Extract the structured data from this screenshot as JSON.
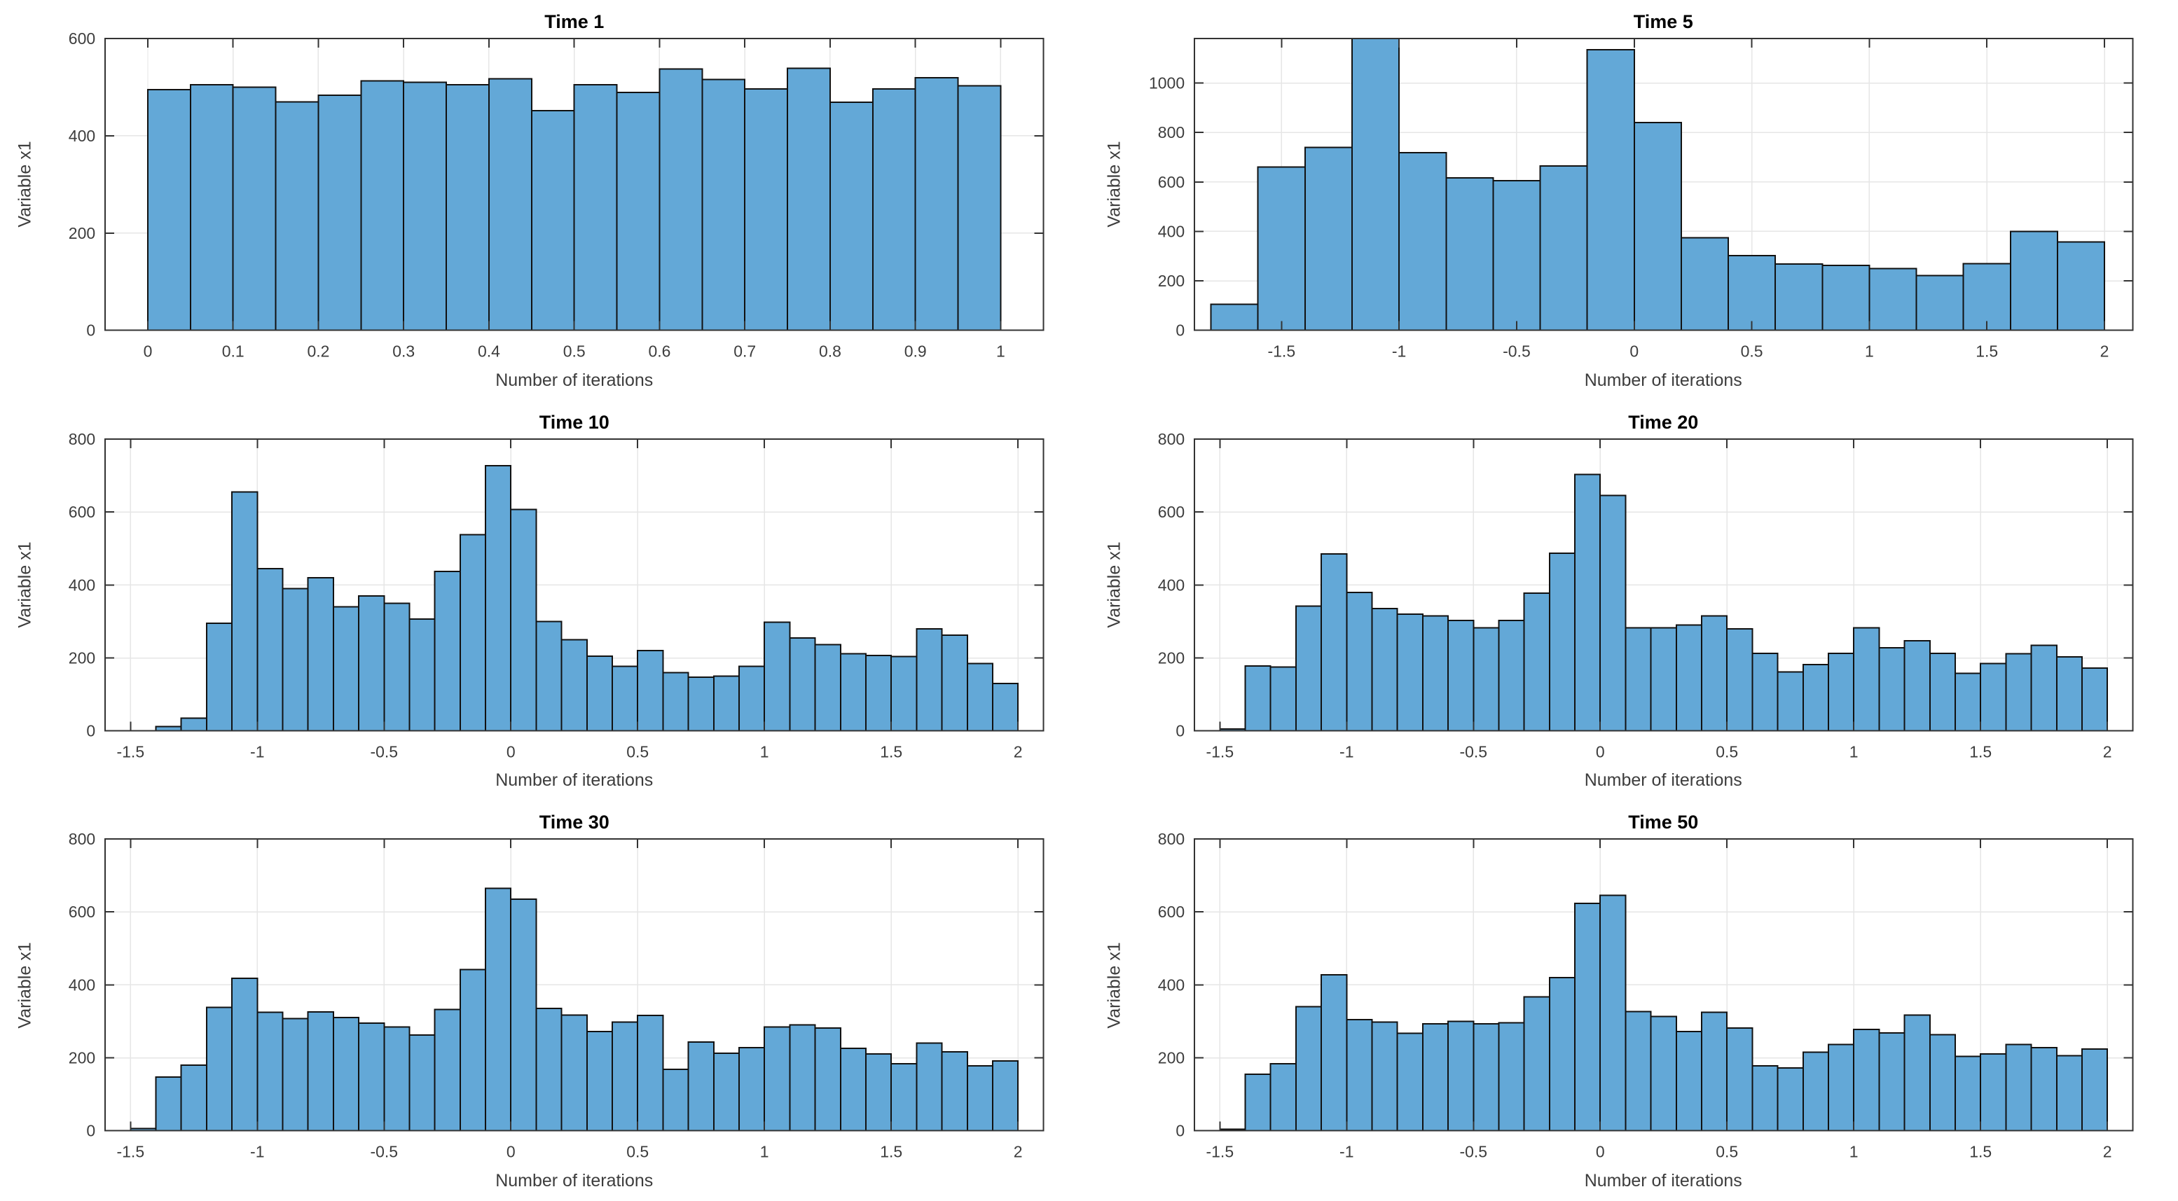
{
  "figure": {
    "background": "#ffffff",
    "layout": "3 rows x 2 columns of histograms"
  },
  "styles": {
    "bar_fill": "#63a8d7",
    "bar_edge": "#111111",
    "axis_color": "#333333",
    "grid_color": "#e6e6e6",
    "tick_label_color": "#3d3d3d",
    "title_color": "#000000"
  },
  "chart_data": [
    {
      "type": "bar",
      "subtype": "histogram",
      "title": "Time 1",
      "xlabel": "Number of iterations",
      "ylabel": "Variable x1",
      "grid": true,
      "legend": null,
      "bin_start": 0,
      "bin_width": 0.05,
      "values": [
        495,
        505,
        500,
        470,
        483,
        513,
        510,
        505,
        517,
        452,
        505,
        489,
        537,
        516,
        496,
        539,
        469,
        496,
        519,
        503
      ],
      "xlim": [
        -0.05,
        1.05
      ],
      "ylim": [
        0,
        600
      ],
      "xtick_vals": [
        0,
        0.1,
        0.2,
        0.3,
        0.4,
        0.5,
        0.6,
        0.7,
        0.8,
        0.9,
        1
      ],
      "xtick_labels": [
        "0",
        "0.1",
        "0.2",
        "0.3",
        "0.4",
        "0.5",
        "0.6",
        "0.7",
        "0.8",
        "0.9",
        "1"
      ],
      "ytick_vals": [
        0,
        200,
        400,
        600
      ],
      "ytick_labels": [
        "0",
        "200",
        "400",
        "600"
      ]
    },
    {
      "type": "bar",
      "subtype": "histogram",
      "title": "Time 5",
      "xlabel": "Number of iterations",
      "ylabel": "Variable x1",
      "grid": true,
      "legend": null,
      "bin_start": -1.8,
      "bin_width": 0.2,
      "values": [
        105,
        660,
        740,
        1190,
        718,
        617,
        605,
        665,
        1135,
        840,
        375,
        302,
        268,
        262,
        250,
        222,
        270,
        400,
        357
      ],
      "xlim": [
        -1.87,
        2.12
      ],
      "ylim": [
        0,
        1180
      ],
      "xtick_vals": [
        -1.5,
        -1,
        -0.5,
        0,
        0.5,
        1,
        1.5,
        2
      ],
      "xtick_labels": [
        "-1.5",
        "-1",
        "-0.5",
        "0",
        "0.5",
        "1",
        "1.5",
        "2"
      ],
      "ytick_vals": [
        0,
        200,
        400,
        600,
        800,
        1000
      ],
      "ytick_labels": [
        "0",
        "200",
        "400",
        "600",
        "800",
        "1000"
      ]
    },
    {
      "type": "bar",
      "subtype": "histogram",
      "title": "Time 10",
      "xlabel": "Number of iterations",
      "ylabel": "Variable x1",
      "grid": true,
      "legend": null,
      "bin_start": -1.4,
      "bin_width": 0.1,
      "values": [
        12,
        35,
        295,
        655,
        445,
        390,
        420,
        340,
        370,
        350,
        307,
        437,
        538,
        727,
        607,
        300,
        250,
        205,
        177,
        220,
        160,
        147,
        150,
        177,
        298,
        255,
        237,
        212,
        207,
        204,
        280,
        262,
        185,
        130
      ],
      "xlim": [
        -1.6,
        2.1
      ],
      "ylim": [
        0,
        800
      ],
      "xtick_vals": [
        -1.5,
        -1,
        -0.5,
        0,
        0.5,
        1,
        1.5,
        2
      ],
      "xtick_labels": [
        "-1.5",
        "-1",
        "-0.5",
        "0",
        "0.5",
        "1",
        "1.5",
        "2"
      ],
      "ytick_vals": [
        0,
        200,
        400,
        600,
        800
      ],
      "ytick_labels": [
        "0",
        "200",
        "400",
        "600",
        "800"
      ]
    },
    {
      "type": "bar",
      "subtype": "histogram",
      "title": "Time 20",
      "xlabel": "Number of iterations",
      "ylabel": "Variable x1",
      "grid": true,
      "legend": null,
      "bin_start": -1.5,
      "bin_width": 0.1,
      "values": [
        5,
        178,
        175,
        342,
        485,
        380,
        335,
        320,
        315,
        303,
        283,
        303,
        378,
        487,
        703,
        645,
        283,
        283,
        290,
        315,
        280,
        213,
        162,
        182,
        213,
        283,
        228,
        247,
        213,
        158,
        185,
        212,
        235,
        203,
        172
      ],
      "xlim": [
        -1.6,
        2.1
      ],
      "ylim": [
        0,
        800
      ],
      "xtick_vals": [
        -1.5,
        -1,
        -0.5,
        0,
        0.5,
        1,
        1.5,
        2
      ],
      "xtick_labels": [
        "-1.5",
        "-1",
        "-0.5",
        "0",
        "0.5",
        "1",
        "1.5",
        "2"
      ],
      "ytick_vals": [
        0,
        200,
        400,
        600,
        800
      ],
      "ytick_labels": [
        "0",
        "200",
        "400",
        "600",
        "800"
      ]
    },
    {
      "type": "bar",
      "subtype": "histogram",
      "title": "Time 30",
      "xlabel": "Number of iterations",
      "ylabel": "Variable x1",
      "grid": true,
      "legend": null,
      "bin_start": -1.5,
      "bin_width": 0.1,
      "values": [
        6,
        147,
        180,
        338,
        418,
        325,
        308,
        326,
        310,
        295,
        285,
        262,
        333,
        442,
        665,
        635,
        335,
        317,
        272,
        298,
        316,
        168,
        243,
        213,
        228,
        285,
        290,
        282,
        226,
        211,
        184,
        240,
        216,
        178,
        191
      ],
      "xlim": [
        -1.6,
        2.1
      ],
      "ylim": [
        0,
        800
      ],
      "xtick_vals": [
        -1.5,
        -1,
        -0.5,
        0,
        0.5,
        1,
        1.5,
        2
      ],
      "xtick_labels": [
        "-1.5",
        "-1",
        "-0.5",
        "0",
        "0.5",
        "1",
        "1.5",
        "2"
      ],
      "ytick_vals": [
        0,
        200,
        400,
        600,
        800
      ],
      "ytick_labels": [
        "0",
        "200",
        "400",
        "600",
        "800"
      ]
    },
    {
      "type": "bar",
      "subtype": "histogram",
      "title": "Time 50",
      "xlabel": "Number of iterations",
      "ylabel": "Variable x1",
      "grid": true,
      "legend": null,
      "bin_start": -1.5,
      "bin_width": 0.1,
      "values": [
        4,
        155,
        184,
        340,
        428,
        305,
        298,
        267,
        293,
        300,
        293,
        296,
        367,
        420,
        623,
        645,
        327,
        313,
        272,
        325,
        282,
        178,
        172,
        215,
        237,
        278,
        268,
        317,
        263,
        204,
        211,
        237,
        228,
        206,
        224
      ],
      "xlim": [
        -1.6,
        2.1
      ],
      "ylim": [
        0,
        800
      ],
      "xtick_vals": [
        -1.5,
        -1,
        -0.5,
        0,
        0.5,
        1,
        1.5,
        2
      ],
      "xtick_labels": [
        "-1.5",
        "-1",
        "-0.5",
        "0",
        "0.5",
        "1",
        "1.5",
        "2"
      ],
      "ytick_vals": [
        0,
        200,
        400,
        600,
        800
      ],
      "ytick_labels": [
        "0",
        "200",
        "400",
        "600",
        "800"
      ]
    }
  ]
}
